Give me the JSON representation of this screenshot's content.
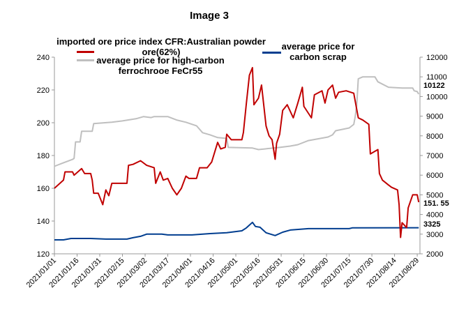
{
  "title": "Image 3",
  "chart_data": {
    "type": "line",
    "title": "Image 3",
    "x_type": "date",
    "x_ticks": [
      "2021/01/01",
      "2021/01/16",
      "2021/01/31",
      "2021/02/15",
      "2021/03/02",
      "2021/03/17",
      "2021/04/01",
      "2021/04/16",
      "2021/05/01",
      "2021/05/16",
      "2021/05/31",
      "2021/06/15",
      "2021/06/30",
      "2021/07/15",
      "2021/07/30",
      "2021/08/14",
      "2021/08/29"
    ],
    "xlim": [
      "2021-01-01",
      "2021-08-31"
    ],
    "y_left": {
      "ylim": [
        120,
        240
      ],
      "ticks": [
        120,
        140,
        160,
        180,
        200,
        220,
        240
      ]
    },
    "y_right": {
      "ylim": [
        2000,
        12000
      ],
      "ticks": [
        2000,
        3000,
        4000,
        5000,
        6000,
        7000,
        8000,
        9000,
        10000,
        11000,
        12000
      ]
    },
    "grid": false,
    "legend_position": "top",
    "series": [
      {
        "name": "imported ore price index CFR:Australian powder ore(62%)",
        "axis": "left",
        "color": "#c00000",
        "end_label": "151. 55",
        "points": [
          [
            "2021-01-01",
            160
          ],
          [
            "2021-01-07",
            165
          ],
          [
            "2021-01-08",
            170
          ],
          [
            "2021-01-13",
            170
          ],
          [
            "2021-01-14",
            168
          ],
          [
            "2021-01-19",
            172
          ],
          [
            "2021-01-21",
            169
          ],
          [
            "2021-01-25",
            169
          ],
          [
            "2021-01-26",
            165
          ],
          [
            "2021-01-27",
            157
          ],
          [
            "2021-01-30",
            157
          ],
          [
            "2021-02-02",
            150
          ],
          [
            "2021-02-04",
            159
          ],
          [
            "2021-02-06",
            155.5
          ],
          [
            "2021-02-08",
            163
          ],
          [
            "2021-02-18",
            163
          ],
          [
            "2021-02-19",
            174
          ],
          [
            "2021-02-22",
            174.6
          ],
          [
            "2021-02-27",
            176.8
          ],
          [
            "2021-03-03",
            174
          ],
          [
            "2021-03-08",
            172.5
          ],
          [
            "2021-03-09",
            163
          ],
          [
            "2021-03-12",
            170
          ],
          [
            "2021-03-14",
            165
          ],
          [
            "2021-03-17",
            166
          ],
          [
            "2021-03-20",
            160
          ],
          [
            "2021-03-23",
            156
          ],
          [
            "2021-03-26",
            160
          ],
          [
            "2021-03-29",
            167.4
          ],
          [
            "2021-03-31",
            166
          ],
          [
            "2021-04-05",
            166
          ],
          [
            "2021-04-07",
            172.5
          ],
          [
            "2021-04-12",
            172.5
          ],
          [
            "2021-04-15",
            176
          ],
          [
            "2021-04-19",
            188
          ],
          [
            "2021-04-21",
            184
          ],
          [
            "2021-04-24",
            185
          ],
          [
            "2021-04-25",
            193
          ],
          [
            "2021-04-28",
            189.6
          ],
          [
            "2021-05-05",
            189.6
          ],
          [
            "2021-05-06",
            194
          ],
          [
            "2021-05-08",
            212
          ],
          [
            "2021-05-10",
            229
          ],
          [
            "2021-05-12",
            233.6
          ],
          [
            "2021-05-13",
            211
          ],
          [
            "2021-05-16",
            215
          ],
          [
            "2021-05-18",
            223
          ],
          [
            "2021-05-21",
            198
          ],
          [
            "2021-05-23",
            192
          ],
          [
            "2021-05-25",
            189.6
          ],
          [
            "2021-05-27",
            177.7
          ],
          [
            "2021-05-28",
            187.5
          ],
          [
            "2021-05-30",
            193
          ],
          [
            "2021-06-01",
            207.5
          ],
          [
            "2021-06-04",
            211
          ],
          [
            "2021-06-08",
            203
          ],
          [
            "2021-06-11",
            212
          ],
          [
            "2021-06-14",
            221.6
          ],
          [
            "2021-06-15",
            210
          ],
          [
            "2021-06-20",
            203
          ],
          [
            "2021-06-22",
            217
          ],
          [
            "2021-06-27",
            219.5
          ],
          [
            "2021-06-29",
            212
          ],
          [
            "2021-07-01",
            220
          ],
          [
            "2021-07-04",
            223
          ],
          [
            "2021-07-06",
            215
          ],
          [
            "2021-07-08",
            218.6
          ],
          [
            "2021-07-13",
            219.5
          ],
          [
            "2021-07-18",
            218
          ],
          [
            "2021-07-21",
            203
          ],
          [
            "2021-07-24",
            201.6
          ],
          [
            "2021-07-28",
            199
          ],
          [
            "2021-07-29",
            181
          ],
          [
            "2021-08-03",
            183.6
          ],
          [
            "2021-08-04",
            169
          ],
          [
            "2021-08-06",
            165
          ],
          [
            "2021-08-10",
            162
          ],
          [
            "2021-08-12",
            160.6
          ],
          [
            "2021-08-16",
            159
          ],
          [
            "2021-08-17",
            150
          ],
          [
            "2021-08-18",
            130
          ],
          [
            "2021-08-19",
            139
          ],
          [
            "2021-08-22",
            136
          ],
          [
            "2021-08-23",
            148
          ],
          [
            "2021-08-26",
            156
          ],
          [
            "2021-08-29",
            156
          ],
          [
            "2021-08-30",
            151.55
          ]
        ]
      },
      {
        "name": "average price for high-carbon ferrochrooe FeCr55",
        "axis": "right",
        "color": "#bfbfbf",
        "end_label": "10122",
        "points": [
          [
            "2021-01-01",
            6450
          ],
          [
            "2021-01-07",
            6630
          ],
          [
            "2021-01-13",
            6800
          ],
          [
            "2021-01-14",
            6850
          ],
          [
            "2021-01-15",
            7690
          ],
          [
            "2021-01-18",
            7690
          ],
          [
            "2021-01-19",
            8230
          ],
          [
            "2021-01-26",
            8230
          ],
          [
            "2021-01-27",
            8620
          ],
          [
            "2021-02-08",
            8690
          ],
          [
            "2021-02-15",
            8760
          ],
          [
            "2021-02-24",
            8870
          ],
          [
            "2021-03-01",
            8980
          ],
          [
            "2021-03-06",
            8930
          ],
          [
            "2021-03-08",
            8980
          ],
          [
            "2021-03-17",
            8980
          ],
          [
            "2021-03-23",
            8800
          ],
          [
            "2021-03-29",
            8690
          ],
          [
            "2021-04-05",
            8510
          ],
          [
            "2021-04-09",
            8160
          ],
          [
            "2021-04-14",
            8050
          ],
          [
            "2021-04-19",
            7910
          ],
          [
            "2021-04-25",
            7870
          ],
          [
            "2021-04-26",
            7410
          ],
          [
            "2021-05-12",
            7380
          ],
          [
            "2021-05-16",
            7300
          ],
          [
            "2021-05-30",
            7410
          ],
          [
            "2021-06-06",
            7480
          ],
          [
            "2021-06-11",
            7550
          ],
          [
            "2021-06-18",
            7760
          ],
          [
            "2021-07-01",
            7940
          ],
          [
            "2021-07-04",
            8050
          ],
          [
            "2021-07-06",
            8260
          ],
          [
            "2021-07-15",
            8400
          ],
          [
            "2021-07-18",
            8580
          ],
          [
            "2021-07-19",
            8980
          ],
          [
            "2021-07-20",
            9580
          ],
          [
            "2021-07-21",
            10900
          ],
          [
            "2021-07-24",
            11000
          ],
          [
            "2021-08-01",
            11000
          ],
          [
            "2021-08-03",
            10750
          ],
          [
            "2021-08-10",
            10470
          ],
          [
            "2021-08-19",
            10430
          ],
          [
            "2021-08-26",
            10430
          ],
          [
            "2021-08-27",
            10290
          ],
          [
            "2021-08-29",
            10250
          ],
          [
            "2021-08-30",
            10122
          ]
        ]
      },
      {
        "name": "average price for carbon scrap",
        "axis": "right",
        "color": "#003d8f",
        "end_label": "3325",
        "points": [
          [
            "2021-01-01",
            2710
          ],
          [
            "2021-01-07",
            2710
          ],
          [
            "2021-01-12",
            2780
          ],
          [
            "2021-01-25",
            2780
          ],
          [
            "2021-02-04",
            2750
          ],
          [
            "2021-02-18",
            2750
          ],
          [
            "2021-02-22",
            2820
          ],
          [
            "2021-02-27",
            2890
          ],
          [
            "2021-03-03",
            3000
          ],
          [
            "2021-03-13",
            3000
          ],
          [
            "2021-03-17",
            2960
          ],
          [
            "2021-04-02",
            2960
          ],
          [
            "2021-04-14",
            3030
          ],
          [
            "2021-04-25",
            3070
          ],
          [
            "2021-05-05",
            3170
          ],
          [
            "2021-05-08",
            3320
          ],
          [
            "2021-05-12",
            3600
          ],
          [
            "2021-05-14",
            3390
          ],
          [
            "2021-05-17",
            3350
          ],
          [
            "2021-05-21",
            3070
          ],
          [
            "2021-05-27",
            2930
          ],
          [
            "2021-06-01",
            3100
          ],
          [
            "2021-06-06",
            3210
          ],
          [
            "2021-06-18",
            3280
          ],
          [
            "2021-07-15",
            3280
          ],
          [
            "2021-07-17",
            3320
          ],
          [
            "2021-08-30",
            3325
          ]
        ]
      }
    ]
  }
}
